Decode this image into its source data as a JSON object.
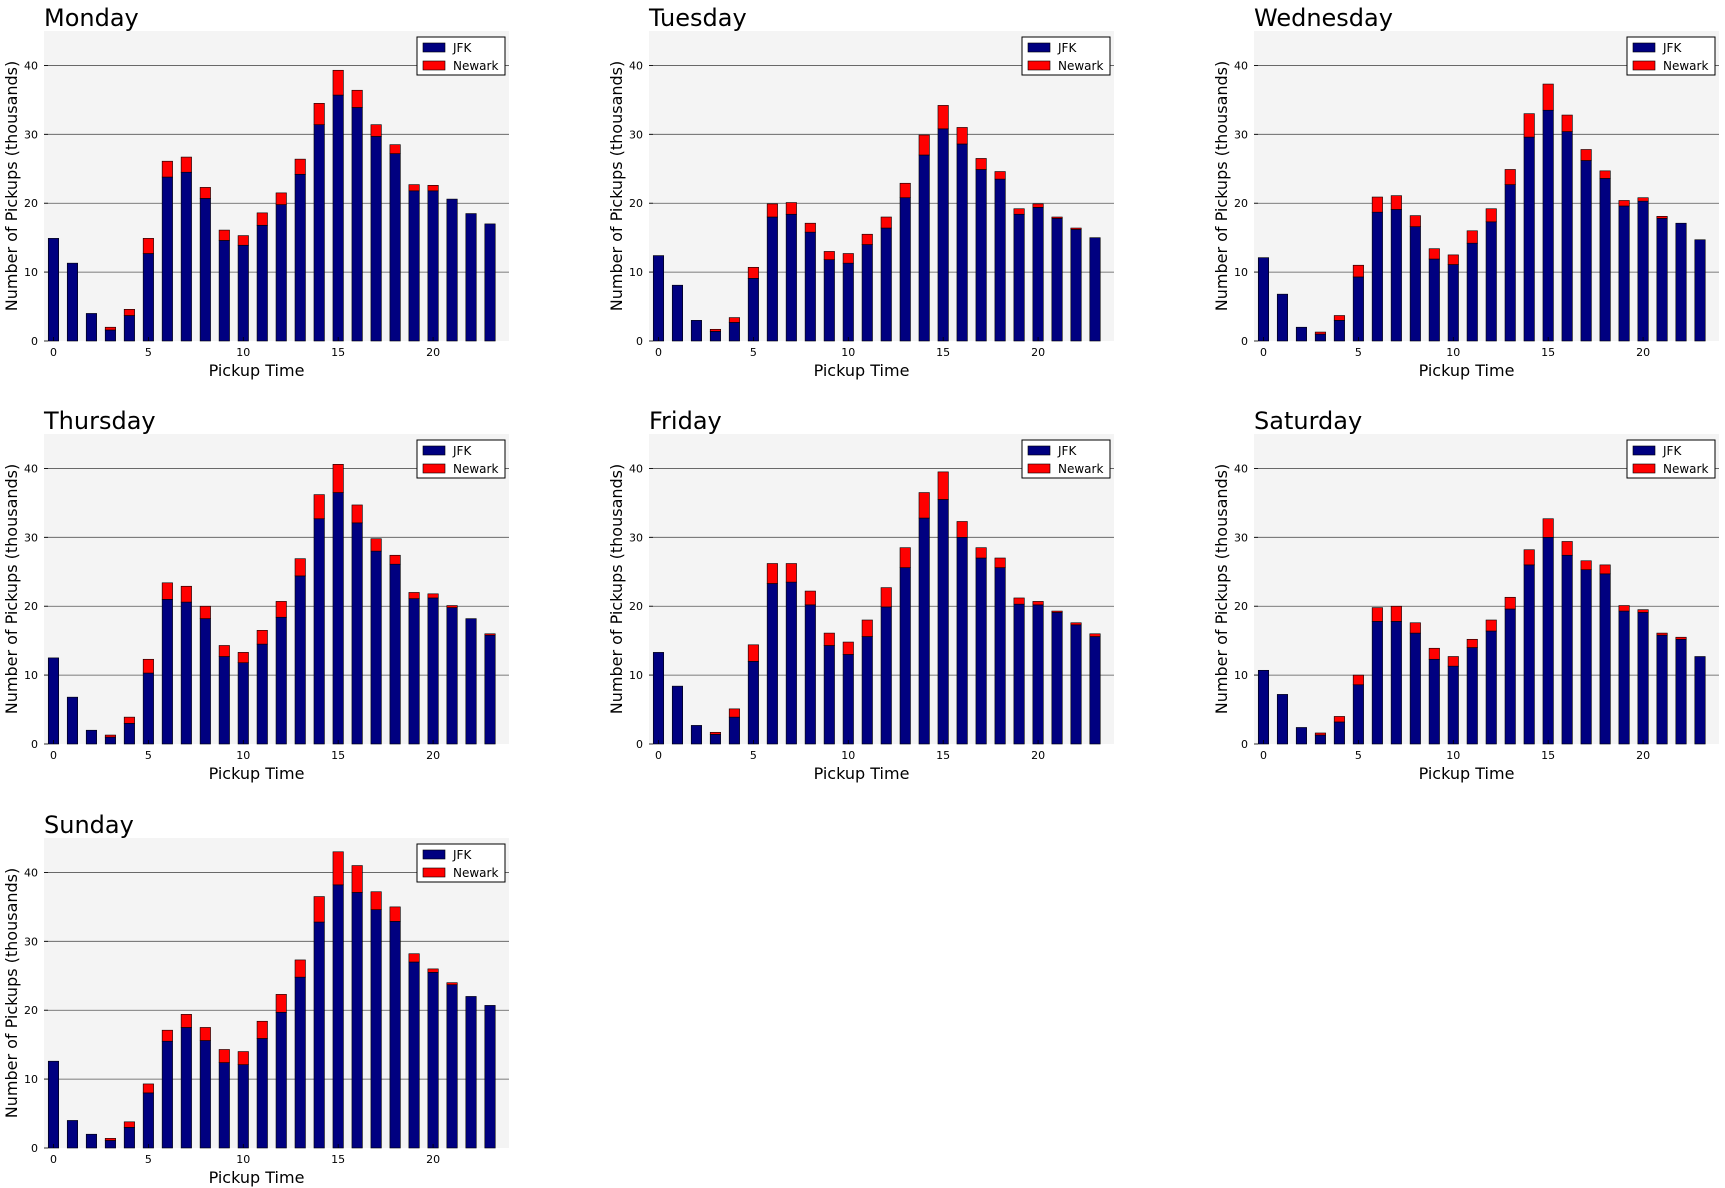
{
  "figure": {
    "jfk_color": "#000080",
    "newark_color": "#ff0000",
    "plot_bg": "#f4f4f4",
    "grid_color": "#555555"
  },
  "chart_data": [
    {
      "type": "bar",
      "stacked": true,
      "title": "Monday",
      "xlabel": "Pickup Time",
      "ylabel": "Number of Pickups (thousands)",
      "xticks": [
        "0",
        "5",
        "10",
        "15",
        "20"
      ],
      "yticks": [
        "0",
        "10",
        "20",
        "30",
        "40"
      ],
      "ylim": [
        0,
        45
      ],
      "grid": "horizontal",
      "legend_position": "top-right",
      "x": [
        0,
        1,
        2,
        3,
        4,
        5,
        6,
        7,
        8,
        9,
        10,
        11,
        12,
        13,
        14,
        15,
        16,
        17,
        18,
        19,
        20,
        21,
        22,
        23
      ],
      "series": [
        {
          "name": "JFK",
          "values": [
            14.9,
            11.3,
            4.0,
            1.6,
            3.7,
            12.7,
            23.8,
            24.5,
            20.7,
            14.6,
            13.9,
            16.8,
            19.8,
            24.2,
            31.4,
            35.7,
            33.9,
            29.7,
            27.2,
            21.8,
            21.8,
            20.6,
            18.5,
            17.0
          ]
        },
        {
          "name": "Newark",
          "values": [
            0.0,
            0.0,
            0.0,
            0.4,
            0.9,
            2.2,
            2.3,
            2.2,
            1.6,
            1.5,
            1.4,
            1.8,
            1.7,
            2.2,
            3.1,
            3.6,
            2.5,
            1.7,
            1.3,
            0.9,
            0.8,
            0.0,
            0.0,
            0.0
          ]
        }
      ]
    },
    {
      "type": "bar",
      "stacked": true,
      "title": "Tuesday",
      "xlabel": "Pickup Time",
      "ylabel": "Number of Pickups (thousands)",
      "xticks": [
        "0",
        "5",
        "10",
        "15",
        "20"
      ],
      "yticks": [
        "0",
        "10",
        "20",
        "30",
        "40"
      ],
      "ylim": [
        0,
        45
      ],
      "grid": "horizontal",
      "legend_position": "top-right",
      "x": [
        0,
        1,
        2,
        3,
        4,
        5,
        6,
        7,
        8,
        9,
        10,
        11,
        12,
        13,
        14,
        15,
        16,
        17,
        18,
        19,
        20,
        21,
        22,
        23
      ],
      "series": [
        {
          "name": "JFK",
          "values": [
            12.4,
            8.1,
            3.0,
            1.4,
            2.7,
            9.1,
            18.0,
            18.4,
            15.8,
            11.8,
            11.3,
            14.0,
            16.4,
            20.8,
            27.0,
            30.8,
            28.6,
            24.9,
            23.5,
            18.4,
            19.4,
            17.8,
            16.2,
            15.0
          ]
        },
        {
          "name": "Newark",
          "values": [
            0.0,
            0.0,
            0.0,
            0.3,
            0.7,
            1.6,
            1.9,
            1.7,
            1.3,
            1.2,
            1.4,
            1.5,
            1.6,
            2.1,
            2.9,
            3.4,
            2.4,
            1.6,
            1.1,
            0.8,
            0.5,
            0.2,
            0.2,
            0.0
          ]
        }
      ]
    },
    {
      "type": "bar",
      "stacked": true,
      "title": "Wednesday",
      "xlabel": "Pickup Time",
      "ylabel": "Number of Pickups (thousands)",
      "xticks": [
        "0",
        "5",
        "10",
        "15",
        "20"
      ],
      "yticks": [
        "0",
        "10",
        "20",
        "30",
        "40"
      ],
      "ylim": [
        0,
        45
      ],
      "grid": "horizontal",
      "legend_position": "top-right",
      "x": [
        0,
        1,
        2,
        3,
        4,
        5,
        6,
        7,
        8,
        9,
        10,
        11,
        12,
        13,
        14,
        15,
        16,
        17,
        18,
        19,
        20,
        21,
        22,
        23
      ],
      "series": [
        {
          "name": "JFK",
          "values": [
            12.1,
            6.8,
            2.0,
            1.0,
            3.0,
            9.3,
            18.7,
            19.1,
            16.6,
            11.9,
            11.1,
            14.2,
            17.3,
            22.7,
            29.6,
            33.5,
            30.4,
            26.2,
            23.6,
            19.6,
            20.3,
            17.8,
            17.1,
            14.7
          ]
        },
        {
          "name": "Newark",
          "values": [
            0.0,
            0.0,
            0.0,
            0.3,
            0.7,
            1.7,
            2.2,
            2.0,
            1.6,
            1.5,
            1.4,
            1.8,
            1.9,
            2.2,
            3.4,
            3.8,
            2.4,
            1.6,
            1.1,
            0.8,
            0.5,
            0.3,
            0.0,
            0.0
          ]
        }
      ]
    },
    {
      "type": "bar",
      "stacked": true,
      "title": "Thursday",
      "xlabel": "Pickup Time",
      "ylabel": "Number of Pickups (thousands)",
      "xticks": [
        "0",
        "5",
        "10",
        "15",
        "20"
      ],
      "yticks": [
        "0",
        "10",
        "20",
        "30",
        "40"
      ],
      "ylim": [
        0,
        45
      ],
      "grid": "horizontal",
      "legend_position": "top-right",
      "x": [
        0,
        1,
        2,
        3,
        4,
        5,
        6,
        7,
        8,
        9,
        10,
        11,
        12,
        13,
        14,
        15,
        16,
        17,
        18,
        19,
        20,
        21,
        22,
        23
      ],
      "series": [
        {
          "name": "JFK",
          "values": [
            12.5,
            6.8,
            2.0,
            1.0,
            3.0,
            10.3,
            21.0,
            20.6,
            18.2,
            12.7,
            11.8,
            14.5,
            18.4,
            24.4,
            32.7,
            36.5,
            32.1,
            28.0,
            26.1,
            21.1,
            21.2,
            19.8,
            18.2,
            15.8
          ]
        },
        {
          "name": "Newark",
          "values": [
            0.0,
            0.0,
            0.0,
            0.3,
            0.9,
            2.0,
            2.4,
            2.3,
            1.8,
            1.6,
            1.5,
            2.0,
            2.3,
            2.5,
            3.5,
            4.1,
            2.6,
            1.8,
            1.3,
            0.9,
            0.6,
            0.3,
            0.0,
            0.2
          ]
        }
      ]
    },
    {
      "type": "bar",
      "stacked": true,
      "title": "Friday",
      "xlabel": "Pickup Time",
      "ylabel": "Number of Pickups (thousands)",
      "xticks": [
        "0",
        "5",
        "10",
        "15",
        "20"
      ],
      "yticks": [
        "0",
        "10",
        "20",
        "30",
        "40"
      ],
      "ylim": [
        0,
        45
      ],
      "grid": "horizontal",
      "legend_position": "top-right",
      "x": [
        0,
        1,
        2,
        3,
        4,
        5,
        6,
        7,
        8,
        9,
        10,
        11,
        12,
        13,
        14,
        15,
        16,
        17,
        18,
        19,
        20,
        21,
        22,
        23
      ],
      "series": [
        {
          "name": "JFK",
          "values": [
            13.3,
            8.4,
            2.7,
            1.4,
            3.9,
            12.0,
            23.3,
            23.5,
            20.2,
            14.3,
            13.0,
            15.6,
            19.9,
            25.6,
            32.8,
            35.5,
            30.0,
            27.0,
            25.6,
            20.3,
            20.2,
            19.1,
            17.3,
            15.6
          ]
        },
        {
          "name": "Newark",
          "values": [
            0.0,
            0.0,
            0.0,
            0.3,
            1.2,
            2.4,
            2.9,
            2.7,
            2.0,
            1.8,
            1.8,
            2.4,
            2.8,
            2.9,
            3.7,
            4.0,
            2.3,
            1.5,
            1.4,
            0.9,
            0.5,
            0.2,
            0.3,
            0.4
          ]
        }
      ]
    },
    {
      "type": "bar",
      "stacked": true,
      "title": "Saturday",
      "xlabel": "Pickup Time",
      "ylabel": "Number of Pickups (thousands)",
      "xticks": [
        "0",
        "5",
        "10",
        "15",
        "20"
      ],
      "yticks": [
        "0",
        "10",
        "20",
        "30",
        "40"
      ],
      "ylim": [
        0,
        45
      ],
      "grid": "horizontal",
      "legend_position": "top-right",
      "x": [
        0,
        1,
        2,
        3,
        4,
        5,
        6,
        7,
        8,
        9,
        10,
        11,
        12,
        13,
        14,
        15,
        16,
        17,
        18,
        19,
        20,
        21,
        22,
        23
      ],
      "series": [
        {
          "name": "JFK",
          "values": [
            10.7,
            7.2,
            2.4,
            1.3,
            3.2,
            8.6,
            17.8,
            17.8,
            16.1,
            12.3,
            11.3,
            14.0,
            16.4,
            19.6,
            26.0,
            30.0,
            27.4,
            25.3,
            24.7,
            19.3,
            19.1,
            15.8,
            15.2,
            12.7
          ]
        },
        {
          "name": "Newark",
          "values": [
            0.0,
            0.0,
            0.0,
            0.3,
            0.8,
            1.4,
            2.0,
            2.2,
            1.5,
            1.6,
            1.4,
            1.2,
            1.6,
            1.7,
            2.2,
            2.7,
            2.0,
            1.3,
            1.3,
            0.8,
            0.4,
            0.3,
            0.3,
            0.0
          ]
        }
      ]
    },
    {
      "type": "bar",
      "stacked": true,
      "title": "Sunday",
      "xlabel": "Pickup Time",
      "ylabel": "Number of Pickups (thousands)",
      "xticks": [
        "0",
        "5",
        "10",
        "15",
        "20"
      ],
      "yticks": [
        "0",
        "10",
        "20",
        "30",
        "40"
      ],
      "ylim": [
        0,
        45
      ],
      "grid": "horizontal",
      "legend_position": "top-right",
      "x": [
        0,
        1,
        2,
        3,
        4,
        5,
        6,
        7,
        8,
        9,
        10,
        11,
        12,
        13,
        14,
        15,
        16,
        17,
        18,
        19,
        20,
        21,
        22,
        23
      ],
      "series": [
        {
          "name": "JFK",
          "values": [
            12.6,
            4.0,
            2.0,
            1.1,
            3.0,
            8.0,
            15.5,
            17.5,
            15.6,
            12.4,
            12.1,
            15.9,
            19.7,
            24.8,
            32.8,
            38.2,
            37.1,
            34.6,
            32.9,
            27.0,
            25.5,
            23.7,
            22.0,
            20.7
          ]
        },
        {
          "name": "Newark",
          "values": [
            0.0,
            0.0,
            0.0,
            0.3,
            0.8,
            1.3,
            1.6,
            1.9,
            1.9,
            1.9,
            1.9,
            2.5,
            2.6,
            2.5,
            3.7,
            4.8,
            3.9,
            2.6,
            2.1,
            1.2,
            0.5,
            0.3,
            0.0,
            0.0
          ]
        }
      ]
    }
  ]
}
